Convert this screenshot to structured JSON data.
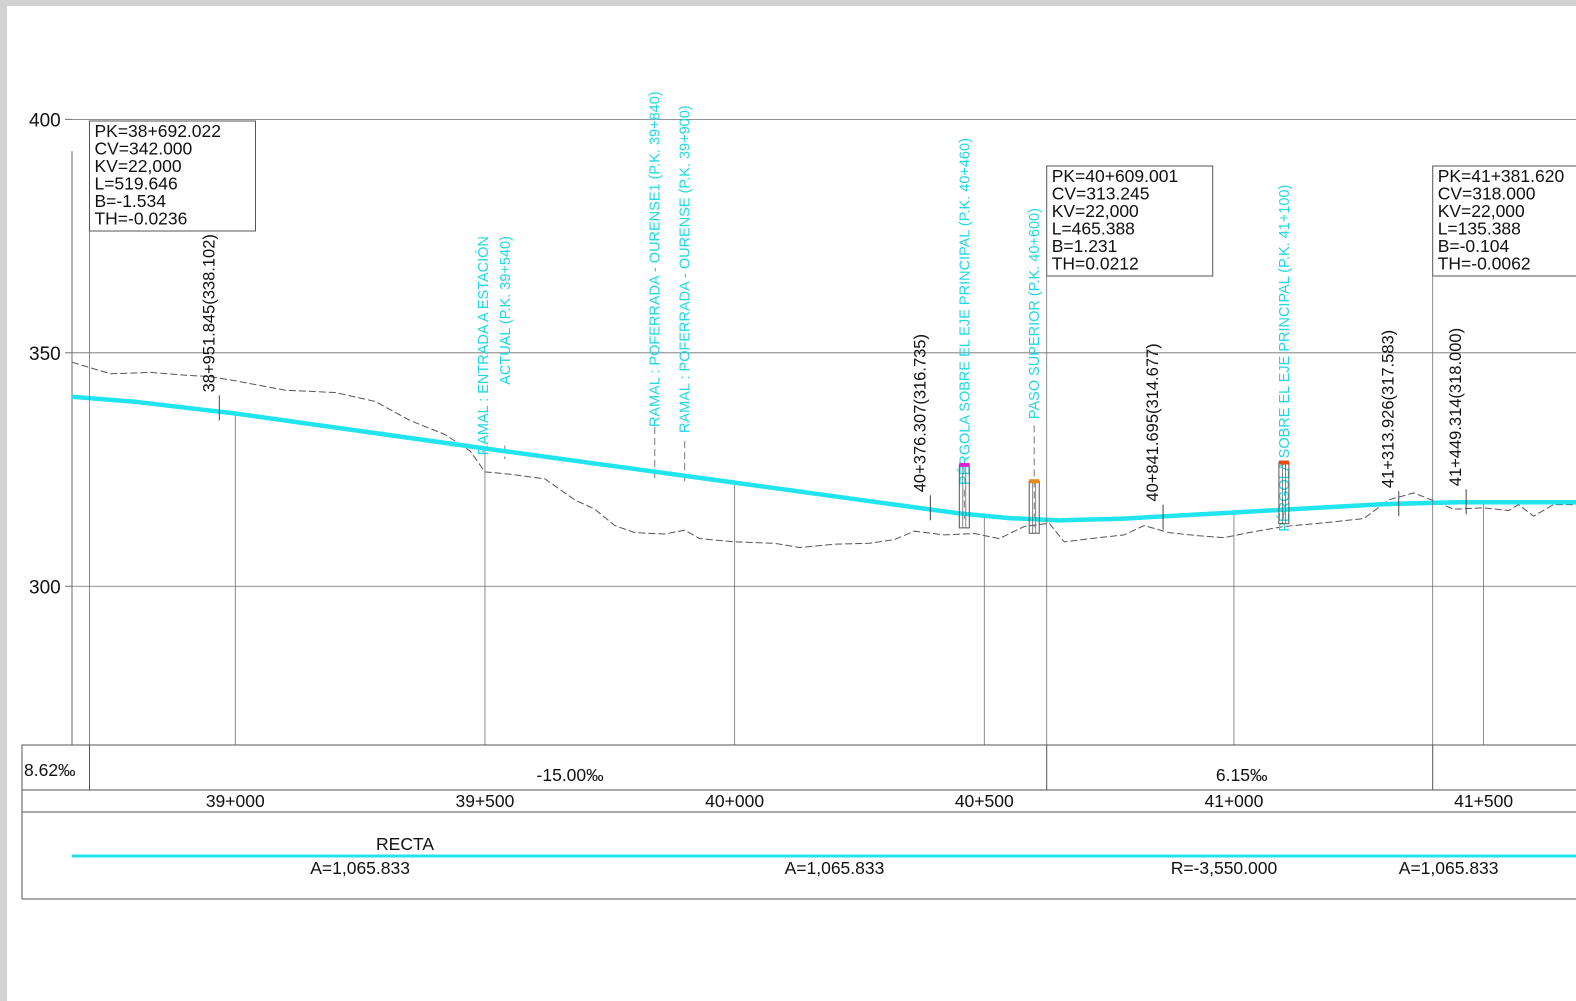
{
  "elevation_axis": {
    "ticks": [
      400,
      350,
      300
    ],
    "range": [
      266,
      420
    ]
  },
  "station_axis": {
    "range": [
      38.673,
      41.685
    ],
    "ticks": [
      {
        "v": 39.0,
        "label": "39+000"
      },
      {
        "v": 39.5,
        "label": "39+500"
      },
      {
        "v": 40.0,
        "label": "40+000"
      },
      {
        "v": 40.5,
        "label": "40+500"
      },
      {
        "v": 41.0,
        "label": "41+000"
      },
      {
        "v": 41.5,
        "label": "41+500"
      }
    ]
  },
  "colors": {
    "rasante": "#20e4ee",
    "annotation": "#1fd8e6",
    "terrain": "#555555",
    "grid": "#6e6e6e",
    "marker_magenta": "#e020e0",
    "marker_orange": "#e88a10",
    "marker_red": "#e84a10"
  },
  "vertical_curves": [
    {
      "pk": 38.692,
      "lines": [
        "PK=38+692.022",
        "CV=342.000",
        "KV=22,000",
        "L=519.646",
        "B=-1.534",
        "TH=-0.0236"
      ]
    },
    {
      "pk": 40.609,
      "lines": [
        "PK=40+609.001",
        "CV=313.245",
        "KV=22,000",
        "L=465.388",
        "B=1.231",
        "TH=0.0212"
      ]
    },
    {
      "pk": 41.382,
      "lines": [
        "PK=41+381.620",
        "CV=318.000",
        "KV=22,000",
        "L=135.388",
        "B=-0.104",
        "TH=-0.0062"
      ]
    }
  ],
  "rasante": [
    {
      "x": 38.673,
      "y": 340.6
    },
    {
      "x": 38.8,
      "y": 339.5
    },
    {
      "x": 39.0,
      "y": 337.0
    },
    {
      "x": 39.5,
      "y": 329.5
    },
    {
      "x": 40.0,
      "y": 322.2
    },
    {
      "x": 40.3,
      "y": 317.8
    },
    {
      "x": 40.45,
      "y": 315.6
    },
    {
      "x": 40.55,
      "y": 314.6
    },
    {
      "x": 40.65,
      "y": 314.1
    },
    {
      "x": 40.78,
      "y": 314.5
    },
    {
      "x": 40.9,
      "y": 315.2
    },
    {
      "x": 41.0,
      "y": 315.8
    },
    {
      "x": 41.15,
      "y": 316.7
    },
    {
      "x": 41.3,
      "y": 317.6
    },
    {
      "x": 41.45,
      "y": 318.0
    },
    {
      "x": 41.685,
      "y": 318.0
    }
  ],
  "terrain": [
    {
      "x": 38.673,
      "y": 348.0
    },
    {
      "x": 38.75,
      "y": 345.5
    },
    {
      "x": 38.83,
      "y": 345.8
    },
    {
      "x": 38.9,
      "y": 345.2
    },
    {
      "x": 38.95,
      "y": 344.9
    },
    {
      "x": 39.0,
      "y": 344.0
    },
    {
      "x": 39.1,
      "y": 342.0
    },
    {
      "x": 39.2,
      "y": 341.5
    },
    {
      "x": 39.28,
      "y": 339.6
    },
    {
      "x": 39.35,
      "y": 335.5
    },
    {
      "x": 39.42,
      "y": 332.5
    },
    {
      "x": 39.47,
      "y": 329.0
    },
    {
      "x": 39.5,
      "y": 324.5
    },
    {
      "x": 39.55,
      "y": 324.0
    },
    {
      "x": 39.62,
      "y": 323.0
    },
    {
      "x": 39.68,
      "y": 318.5
    },
    {
      "x": 39.72,
      "y": 316.5
    },
    {
      "x": 39.76,
      "y": 313.0
    },
    {
      "x": 39.8,
      "y": 311.5
    },
    {
      "x": 39.86,
      "y": 311.2
    },
    {
      "x": 39.9,
      "y": 312.0
    },
    {
      "x": 39.93,
      "y": 310.2
    },
    {
      "x": 40.0,
      "y": 309.5
    },
    {
      "x": 40.08,
      "y": 309.2
    },
    {
      "x": 40.13,
      "y": 308.3
    },
    {
      "x": 40.2,
      "y": 309.0
    },
    {
      "x": 40.27,
      "y": 309.2
    },
    {
      "x": 40.32,
      "y": 310.0
    },
    {
      "x": 40.36,
      "y": 311.8
    },
    {
      "x": 40.42,
      "y": 311.0
    },
    {
      "x": 40.48,
      "y": 311.3
    },
    {
      "x": 40.53,
      "y": 310.2
    },
    {
      "x": 40.58,
      "y": 312.8
    },
    {
      "x": 40.63,
      "y": 313.5
    },
    {
      "x": 40.66,
      "y": 309.5
    },
    {
      "x": 40.72,
      "y": 310.3
    },
    {
      "x": 40.78,
      "y": 311.0
    },
    {
      "x": 40.82,
      "y": 313.0
    },
    {
      "x": 40.87,
      "y": 311.5
    },
    {
      "x": 40.93,
      "y": 310.8
    },
    {
      "x": 40.98,
      "y": 310.4
    },
    {
      "x": 41.03,
      "y": 311.5
    },
    {
      "x": 41.1,
      "y": 312.8
    },
    {
      "x": 41.18,
      "y": 313.6
    },
    {
      "x": 41.26,
      "y": 314.5
    },
    {
      "x": 41.31,
      "y": 318.5
    },
    {
      "x": 41.36,
      "y": 320.0
    },
    {
      "x": 41.4,
      "y": 318.3
    },
    {
      "x": 41.44,
      "y": 316.5
    },
    {
      "x": 41.5,
      "y": 316.8
    },
    {
      "x": 41.55,
      "y": 316.2
    },
    {
      "x": 41.57,
      "y": 317.5
    },
    {
      "x": 41.6,
      "y": 315.0
    },
    {
      "x": 41.64,
      "y": 317.5
    },
    {
      "x": 41.685,
      "y": 317.5
    }
  ],
  "stations": [
    {
      "pk": 39.0,
      "value": 337.0
    },
    {
      "pk": 39.5,
      "value": 329.5
    },
    {
      "pk": 40.0,
      "value": 322.2
    },
    {
      "pk": 40.5,
      "value": 315.0
    },
    {
      "pk": 41.0,
      "value": 315.8
    },
    {
      "pk": 41.5,
      "value": 318.0
    }
  ],
  "point_labels": [
    {
      "text": "38+951.845(338.102)",
      "pk": 38.952,
      "z": 338.1
    },
    {
      "text": "40+376.307(316.735)",
      "pk": 40.376,
      "z": 316.7
    },
    {
      "text": "40+841.695(314.677)",
      "pk": 40.842,
      "z": 314.7
    },
    {
      "text": "41+313.926(317.583)",
      "pk": 41.314,
      "z": 317.6
    },
    {
      "text": "41+449.314(318.000)",
      "pk": 41.449,
      "z": 318.0
    }
  ],
  "annotations": [
    {
      "pk": 39.54,
      "z_top": 375,
      "lines": [
        "RAMAL : ENTRADA A ESTACIÓN",
        "ACTUAL (P.K. 39+540)"
      ]
    },
    {
      "pk": 39.84,
      "z_top": 406,
      "lines": [
        "RAMAL : POFERRADA - OURENSE1 (P.K. 39+840)"
      ]
    },
    {
      "pk": 39.9,
      "z_top": 403,
      "lines": [
        "RAMAL : POFERRADA - OURENSE  (P.K. 39+900)"
      ]
    },
    {
      "pk": 40.46,
      "z_top": 396,
      "lines": [
        "PÉRGOLA SOBRE EL EJE PRINCIPAL (P.K. 40+460)"
      ]
    },
    {
      "pk": 40.6,
      "z_top": 381,
      "lines": [
        "PASO SUPERIOR (P.K. 40+600)"
      ]
    },
    {
      "pk": 41.1,
      "z_top": 386,
      "lines": [
        "PÉRGOLA SOBRE EL EJE PRINCIPAL (P.K. 41+100)"
      ]
    }
  ],
  "structures": [
    {
      "pk": 40.46,
      "z": 326.0,
      "color": "marker_magenta"
    },
    {
      "pk": 40.6,
      "z": 322.5,
      "color": "marker_orange"
    },
    {
      "pk": 41.1,
      "z": 326.5,
      "color": "marker_red"
    }
  ],
  "bands": {
    "slopes": [
      {
        "from": 38.673,
        "to": 38.692,
        "label": "8.62‰"
      },
      {
        "from": 38.692,
        "to": 40.609,
        "label": "-15.00‰"
      },
      {
        "from": 40.609,
        "to": 41.382,
        "label": "6.15‰"
      },
      {
        "from": 41.382,
        "to": 41.685,
        "label": ""
      }
    ],
    "alignment": {
      "title": "RECTA",
      "labels": [
        {
          "pk": 39.25,
          "text": "A=1,065.833"
        },
        {
          "pk": 40.2,
          "text": "A=1,065.833"
        },
        {
          "pk": 40.98,
          "text": "R=-3,550.000"
        },
        {
          "pk": 41.43,
          "text": "A=1,065.833"
        }
      ]
    }
  }
}
